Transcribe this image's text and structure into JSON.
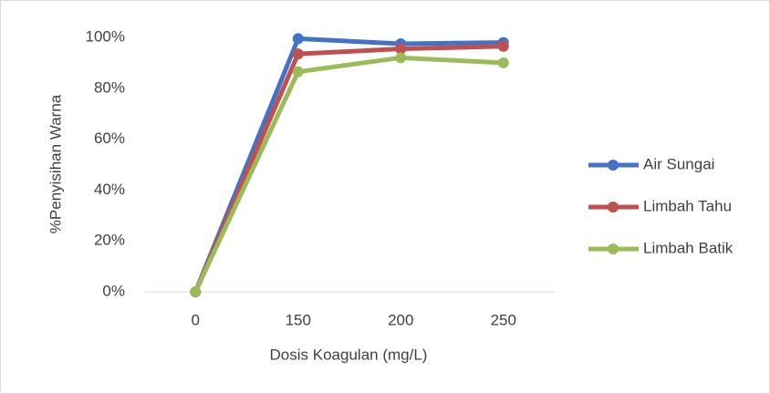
{
  "chart_data": {
    "type": "line",
    "xlabel": "Dosis Koagulan (mg/L)",
    "ylabel": "%Penyisihan Warna",
    "categories": [
      "0",
      "150",
      "200",
      "250"
    ],
    "series": [
      {
        "name": "Air Sungai",
        "color": "#4472c4",
        "values": [
          0,
          99.5,
          97.5,
          98
        ]
      },
      {
        "name": "Limbah Tahu",
        "color": "#c0504d",
        "values": [
          0,
          93.5,
          95.5,
          96.5
        ]
      },
      {
        "name": "Limbah Batik",
        "color": "#9bbb59",
        "values": [
          0,
          86.5,
          92,
          90
        ]
      }
    ],
    "ylim": [
      0,
      100
    ],
    "yticks": [
      {
        "value": 0,
        "label": "0%"
      },
      {
        "value": 20,
        "label": "20%"
      },
      {
        "value": 40,
        "label": "40%"
      },
      {
        "value": 60,
        "label": "60%"
      },
      {
        "value": 80,
        "label": "80%"
      },
      {
        "value": 100,
        "label": "100%"
      }
    ],
    "grid": false,
    "legend": "right"
  }
}
